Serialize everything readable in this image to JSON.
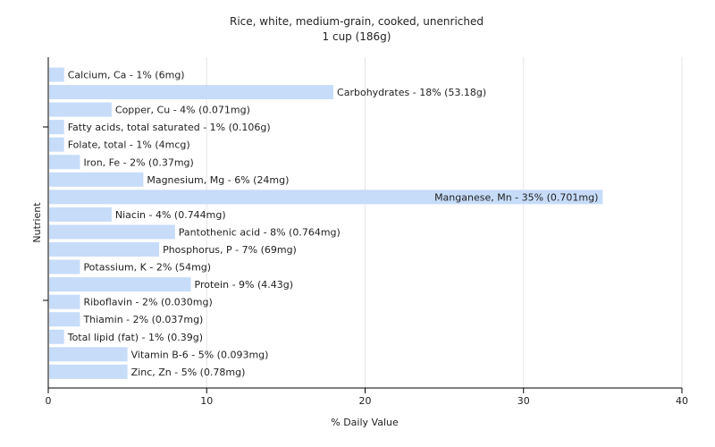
{
  "chart_data": {
    "type": "bar",
    "orientation": "horizontal",
    "title": "Rice, white, medium-grain, cooked, unenriched",
    "subtitle": "1 cup (186g)",
    "xlabel": "% Daily Value",
    "ylabel": "Nutrient",
    "xlim": [
      0,
      40
    ],
    "xticks": [
      0,
      10,
      20,
      30,
      40
    ],
    "grid": true,
    "bar_color": "#c6dcf9",
    "categories": [
      "Calcium, Ca",
      "Carbohydrates",
      "Copper, Cu",
      "Fatty acids, total saturated",
      "Folate, total",
      "Iron, Fe",
      "Magnesium, Mg",
      "Manganese, Mn",
      "Niacin",
      "Pantothenic acid",
      "Phosphorus, P",
      "Potassium, K",
      "Protein",
      "Riboflavin",
      "Thiamin",
      "Total lipid (fat)",
      "Vitamin B-6",
      "Zinc, Zn"
    ],
    "values": [
      1,
      18,
      4,
      1,
      1,
      2,
      6,
      35,
      4,
      8,
      7,
      2,
      9,
      2,
      2,
      1,
      5,
      5
    ],
    "labels": [
      "Calcium, Ca - 1% (6mg)",
      "Carbohydrates - 18% (53.18g)",
      "Copper, Cu - 4% (0.071mg)",
      "Fatty acids, total saturated - 1% (0.106g)",
      "Folate, total - 1% (4mcg)",
      "Iron, Fe - 2% (0.37mg)",
      "Magnesium, Mg - 6% (24mg)",
      "Manganese, Mn - 35% (0.701mg)",
      "Niacin - 4% (0.744mg)",
      "Pantothenic acid - 8% (0.764mg)",
      "Phosphorus, P - 7% (69mg)",
      "Potassium, K - 2% (54mg)",
      "Protein - 9% (4.43g)",
      "Riboflavin - 2% (0.030mg)",
      "Thiamin - 2% (0.037mg)",
      "Total lipid (fat) - 1% (0.39g)",
      "Vitamin B-6 - 5% (0.093mg)",
      "Zinc, Zn - 5% (0.78mg)"
    ]
  }
}
